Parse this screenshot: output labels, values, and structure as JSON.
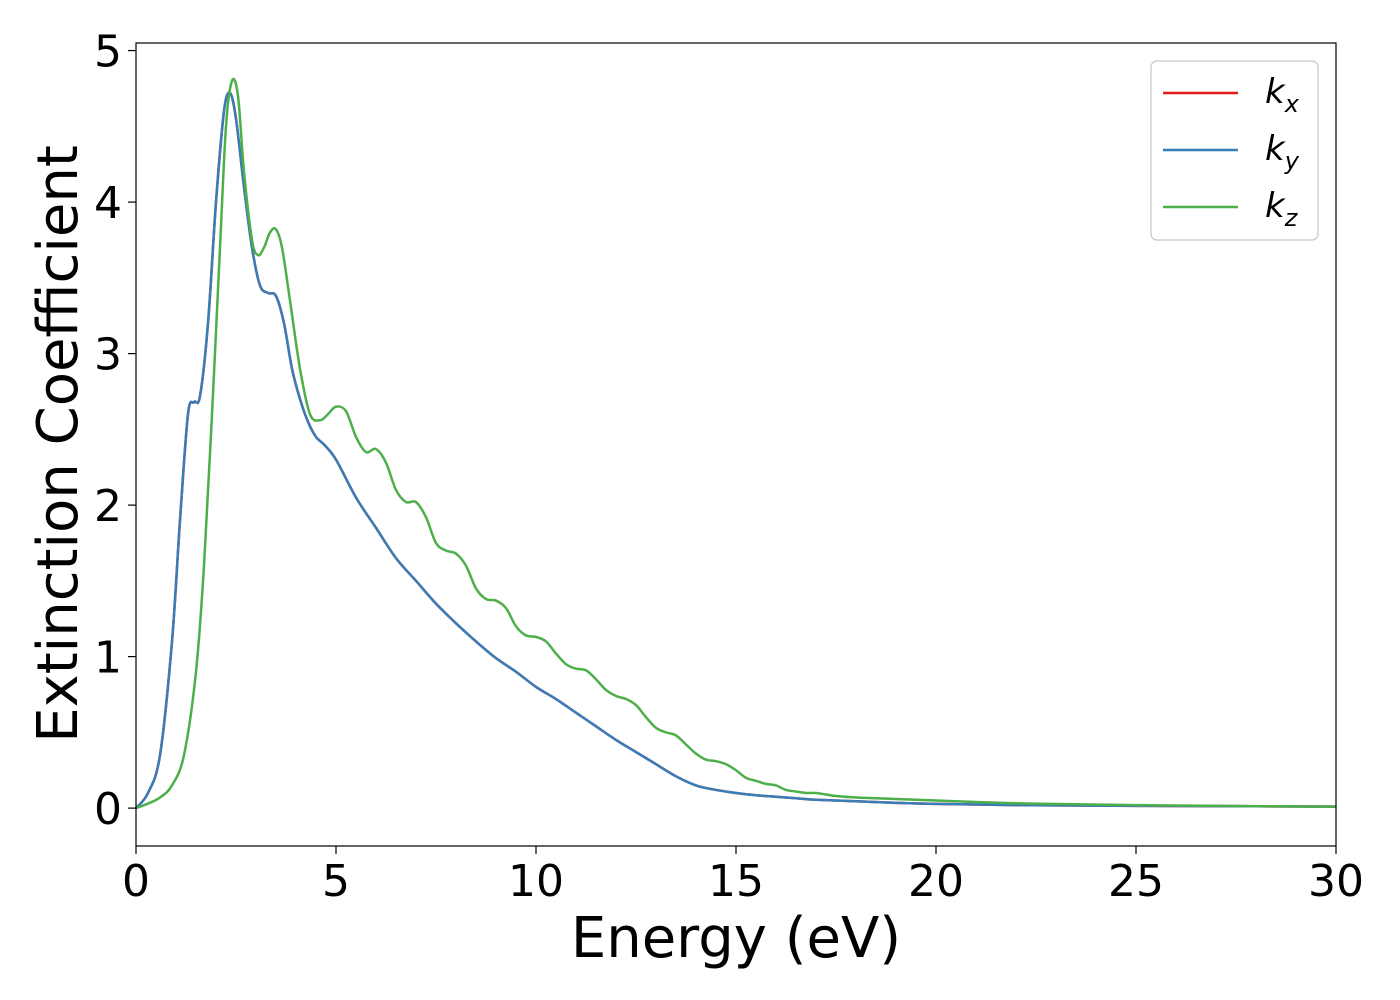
{
  "chart_data": {
    "type": "line",
    "title": "",
    "xlabel": "Energy (eV)",
    "ylabel": "Extinction Coefficient",
    "xlim": [
      0,
      30
    ],
    "ylim": [
      -0.25,
      5.05
    ],
    "xticks": [
      0,
      5,
      10,
      15,
      20,
      25,
      30
    ],
    "yticks": [
      0,
      1,
      2,
      3,
      4,
      5
    ],
    "grid": false,
    "legend_position": "top-right",
    "series": [
      {
        "name": "k_x",
        "label_base": "k",
        "label_sub": "x",
        "color": "#e41a1c",
        "x": [
          0,
          0.3,
          0.6,
          0.9,
          1.1,
          1.3,
          1.45,
          1.6,
          1.8,
          2.0,
          2.2,
          2.35,
          2.5,
          2.7,
          2.9,
          3.1,
          3.3,
          3.5,
          3.7,
          3.9,
          4.1,
          4.3,
          4.5,
          4.7,
          5.0,
          5.5,
          6.0,
          6.5,
          7.0,
          7.5,
          8.0,
          8.5,
          9.0,
          9.5,
          10.0,
          10.5,
          11.0,
          11.5,
          12.0,
          12.5,
          13.0,
          13.5,
          14.0,
          14.5,
          15.0,
          15.5,
          16.0,
          16.5,
          17.0,
          18.0,
          19.0,
          20.0,
          22.0,
          25.0,
          28.0,
          30.0
        ],
        "values": [
          0.0,
          0.1,
          0.35,
          1.1,
          1.9,
          2.6,
          2.68,
          2.72,
          3.2,
          4.0,
          4.6,
          4.72,
          4.55,
          4.1,
          3.7,
          3.45,
          3.4,
          3.38,
          3.2,
          2.9,
          2.7,
          2.55,
          2.45,
          2.4,
          2.3,
          2.05,
          1.85,
          1.65,
          1.5,
          1.35,
          1.22,
          1.1,
          0.99,
          0.9,
          0.8,
          0.72,
          0.63,
          0.54,
          0.45,
          0.37,
          0.29,
          0.21,
          0.15,
          0.12,
          0.1,
          0.085,
          0.075,
          0.065,
          0.055,
          0.045,
          0.035,
          0.028,
          0.02,
          0.015,
          0.012,
          0.01
        ]
      },
      {
        "name": "k_y",
        "label_base": "k",
        "label_sub": "y",
        "color": "#377eb8",
        "x": [
          0,
          0.3,
          0.6,
          0.9,
          1.1,
          1.3,
          1.45,
          1.6,
          1.8,
          2.0,
          2.2,
          2.35,
          2.5,
          2.7,
          2.9,
          3.1,
          3.3,
          3.5,
          3.7,
          3.9,
          4.1,
          4.3,
          4.5,
          4.7,
          5.0,
          5.5,
          6.0,
          6.5,
          7.0,
          7.5,
          8.0,
          8.5,
          9.0,
          9.5,
          10.0,
          10.5,
          11.0,
          11.5,
          12.0,
          12.5,
          13.0,
          13.5,
          14.0,
          14.5,
          15.0,
          15.5,
          16.0,
          16.5,
          17.0,
          18.0,
          19.0,
          20.0,
          22.0,
          25.0,
          28.0,
          30.0
        ],
        "values": [
          0.0,
          0.1,
          0.35,
          1.1,
          1.9,
          2.6,
          2.68,
          2.72,
          3.2,
          4.0,
          4.6,
          4.72,
          4.55,
          4.1,
          3.7,
          3.45,
          3.4,
          3.38,
          3.2,
          2.9,
          2.7,
          2.55,
          2.45,
          2.4,
          2.3,
          2.05,
          1.85,
          1.65,
          1.5,
          1.35,
          1.22,
          1.1,
          0.99,
          0.9,
          0.8,
          0.72,
          0.63,
          0.54,
          0.45,
          0.37,
          0.29,
          0.21,
          0.15,
          0.12,
          0.1,
          0.085,
          0.075,
          0.065,
          0.055,
          0.045,
          0.035,
          0.028,
          0.02,
          0.015,
          0.012,
          0.01
        ]
      },
      {
        "name": "k_z",
        "label_base": "k",
        "label_sub": "z",
        "color": "#4daf4a",
        "x": [
          0,
          0.3,
          0.6,
          0.9,
          1.2,
          1.5,
          1.7,
          1.9,
          2.1,
          2.25,
          2.4,
          2.55,
          2.7,
          2.9,
          3.05,
          3.2,
          3.35,
          3.5,
          3.65,
          3.85,
          4.1,
          4.35,
          4.6,
          4.8,
          5.0,
          5.25,
          5.5,
          5.75,
          6.0,
          6.25,
          6.5,
          6.75,
          7.0,
          7.25,
          7.5,
          7.75,
          8.0,
          8.25,
          8.5,
          8.75,
          9.0,
          9.25,
          9.5,
          9.75,
          10.0,
          10.25,
          10.5,
          10.75,
          11.0,
          11.25,
          11.5,
          11.75,
          12.0,
          12.25,
          12.5,
          12.75,
          13.0,
          13.25,
          13.5,
          13.75,
          14.0,
          14.25,
          14.5,
          14.75,
          15.0,
          15.25,
          15.5,
          15.75,
          16.0,
          16.25,
          16.5,
          16.75,
          17.0,
          17.25,
          17.5,
          18.0,
          18.5,
          19.0,
          19.5,
          20.0,
          20.5,
          21.0,
          22.0,
          23.0,
          25.0,
          27.0,
          30.0
        ],
        "values": [
          0.0,
          0.03,
          0.07,
          0.15,
          0.35,
          0.9,
          1.6,
          2.6,
          3.7,
          4.5,
          4.8,
          4.7,
          4.2,
          3.75,
          3.65,
          3.7,
          3.8,
          3.82,
          3.7,
          3.35,
          2.9,
          2.6,
          2.56,
          2.6,
          2.65,
          2.62,
          2.45,
          2.35,
          2.37,
          2.28,
          2.1,
          2.02,
          2.02,
          1.92,
          1.75,
          1.7,
          1.68,
          1.6,
          1.45,
          1.38,
          1.37,
          1.32,
          1.2,
          1.14,
          1.13,
          1.1,
          1.02,
          0.95,
          0.92,
          0.91,
          0.85,
          0.78,
          0.74,
          0.72,
          0.68,
          0.6,
          0.53,
          0.5,
          0.48,
          0.42,
          0.36,
          0.32,
          0.31,
          0.29,
          0.25,
          0.2,
          0.18,
          0.16,
          0.15,
          0.12,
          0.11,
          0.1,
          0.1,
          0.09,
          0.08,
          0.07,
          0.065,
          0.06,
          0.055,
          0.05,
          0.045,
          0.04,
          0.032,
          0.027,
          0.02,
          0.015,
          0.01
        ]
      }
    ]
  }
}
